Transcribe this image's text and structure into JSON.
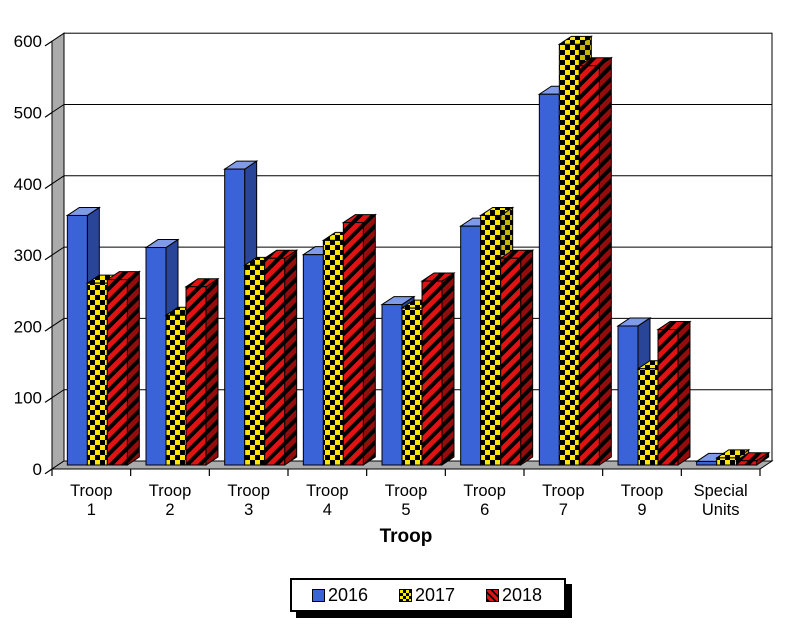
{
  "chart_data": {
    "type": "bar",
    "style": "3d-clustered-column",
    "title": "",
    "xlabel": "Troop",
    "ylabel": "",
    "categories": [
      "Troop 1",
      "Troop 2",
      "Troop 3",
      "Troop 4",
      "Troop 5",
      "Troop 6",
      "Troop 7",
      "Troop 9",
      "Special Units"
    ],
    "series": [
      {
        "name": "2016",
        "pattern": "solid",
        "color": "#3A63D8",
        "values": [
          350,
          305,
          415,
          295,
          225,
          335,
          520,
          195,
          5
        ]
      },
      {
        "name": "2017",
        "pattern": "checker",
        "color": "#FFE800",
        "values": [
          255,
          210,
          280,
          315,
          220,
          350,
          590,
          135,
          10
        ]
      },
      {
        "name": "2018",
        "pattern": "stripes",
        "color": "#E01212",
        "values": [
          260,
          250,
          290,
          340,
          258,
          290,
          560,
          190,
          6
        ]
      }
    ],
    "ylim": [
      0,
      600
    ],
    "ytick_step": 100,
    "yticks": [
      0,
      100,
      200,
      300,
      400,
      500,
      600
    ],
    "grid": true,
    "legend_position": "bottom",
    "pattern_ink": "#000000",
    "wall_color": "#ABABAB",
    "plot_background": "#FFFFFF",
    "line_color": "#000000"
  }
}
